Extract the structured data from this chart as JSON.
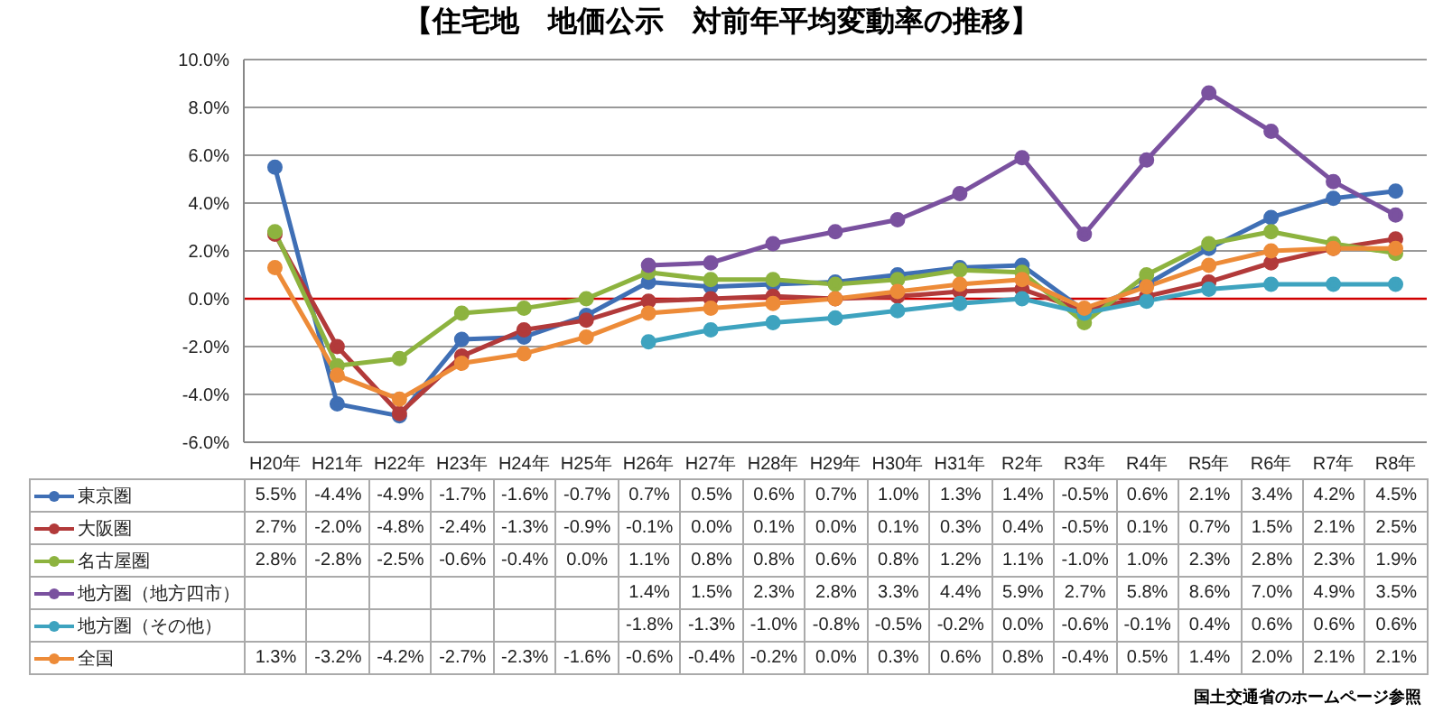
{
  "chart_data": {
    "type": "line",
    "title": "【住宅地　地価公示　対前年平均変動率の推移】",
    "categories": [
      "H20年",
      "H21年",
      "H22年",
      "H23年",
      "H24年",
      "H25年",
      "H26年",
      "H27年",
      "H28年",
      "H29年",
      "H30年",
      "H31年",
      "R2年",
      "R3年",
      "R4年",
      "R5年",
      "R6年",
      "R7年",
      "R8年"
    ],
    "series": [
      {
        "name": "東京圏",
        "color": "#3f6fb5",
        "values": [
          5.5,
          -4.4,
          -4.9,
          -1.7,
          -1.6,
          -0.7,
          0.7,
          0.5,
          0.6,
          0.7,
          1.0,
          1.3,
          1.4,
          -0.5,
          0.6,
          2.1,
          3.4,
          4.2,
          4.5
        ],
        "value_labels": [
          "5.5%",
          "-4.4%",
          "-4.9%",
          "-1.7%",
          "-1.6%",
          "-0.7%",
          "0.7%",
          "0.5%",
          "0.6%",
          "0.7%",
          "1.0%",
          "1.3%",
          "1.4%",
          "-0.5%",
          "0.6%",
          "2.1%",
          "3.4%",
          "4.2%",
          "4.5%"
        ]
      },
      {
        "name": "大阪圏",
        "color": "#b23a3a",
        "values": [
          2.7,
          -2.0,
          -4.8,
          -2.4,
          -1.3,
          -0.9,
          -0.1,
          0.0,
          0.1,
          0.0,
          0.1,
          0.3,
          0.4,
          -0.5,
          0.1,
          0.7,
          1.5,
          2.1,
          2.5
        ],
        "value_labels": [
          "2.7%",
          "-2.0%",
          "-4.8%",
          "-2.4%",
          "-1.3%",
          "-0.9%",
          "-0.1%",
          "0.0%",
          "0.1%",
          "0.0%",
          "0.1%",
          "0.3%",
          "0.4%",
          "-0.5%",
          "0.1%",
          "0.7%",
          "1.5%",
          "2.1%",
          "2.5%"
        ]
      },
      {
        "name": "名古屋圏",
        "color": "#8db33f",
        "values": [
          2.8,
          -2.8,
          -2.5,
          -0.6,
          -0.4,
          0.0,
          1.1,
          0.8,
          0.8,
          0.6,
          0.8,
          1.2,
          1.1,
          -1.0,
          1.0,
          2.3,
          2.8,
          2.3,
          1.9
        ],
        "value_labels": [
          "2.8%",
          "-2.8%",
          "-2.5%",
          "-0.6%",
          "-0.4%",
          "0.0%",
          "1.1%",
          "0.8%",
          "0.8%",
          "0.6%",
          "0.8%",
          "1.2%",
          "1.1%",
          "-1.0%",
          "1.0%",
          "2.3%",
          "2.8%",
          "2.3%",
          "1.9%"
        ]
      },
      {
        "name": "地方圏（地方四市）",
        "color": "#7a519f",
        "values": [
          null,
          null,
          null,
          null,
          null,
          null,
          1.4,
          1.5,
          2.3,
          2.8,
          3.3,
          4.4,
          5.9,
          2.7,
          5.8,
          8.6,
          7.0,
          4.9,
          3.5
        ],
        "value_labels": [
          null,
          null,
          null,
          null,
          null,
          null,
          "1.4%",
          "1.5%",
          "2.3%",
          "2.8%",
          "3.3%",
          "4.4%",
          "5.9%",
          "2.7%",
          "5.8%",
          "8.6%",
          "7.0%",
          "4.9%",
          "3.5%"
        ]
      },
      {
        "name": "地方圏（その他）",
        "color": "#3ea3bf",
        "values": [
          null,
          null,
          null,
          null,
          null,
          null,
          -1.8,
          -1.3,
          -1.0,
          -0.8,
          -0.5,
          -0.2,
          0.0,
          -0.6,
          -0.1,
          0.4,
          0.6,
          0.6,
          0.6
        ],
        "value_labels": [
          null,
          null,
          null,
          null,
          null,
          null,
          "-1.8%",
          "-1.3%",
          "-1.0%",
          "-0.8%",
          "-0.5%",
          "-0.2%",
          "0.0%",
          "-0.6%",
          "-0.1%",
          "0.4%",
          "0.6%",
          "0.6%",
          "0.6%"
        ]
      },
      {
        "name": "全国",
        "color": "#ed8b38",
        "values": [
          1.3,
          -3.2,
          -4.2,
          -2.7,
          -2.3,
          -1.6,
          -0.6,
          -0.4,
          -0.2,
          0.0,
          0.3,
          0.6,
          0.8,
          -0.4,
          0.5,
          1.4,
          2.0,
          2.1,
          2.1
        ],
        "value_labels": [
          "1.3%",
          "-3.2%",
          "-4.2%",
          "-2.7%",
          "-2.3%",
          "-1.6%",
          "-0.6%",
          "-0.4%",
          "-0.2%",
          "0.0%",
          "0.3%",
          "0.6%",
          "0.8%",
          "-0.4%",
          "0.5%",
          "1.4%",
          "2.0%",
          "2.1%",
          "2.1%"
        ]
      }
    ],
    "ylim": [
      -6,
      10
    ],
    "yticks": [
      {
        "value": -6,
        "label": "-6.0%"
      },
      {
        "value": -4,
        "label": "-4.0%"
      },
      {
        "value": -2,
        "label": "-2.0%"
      },
      {
        "value": 0,
        "label": "0.0%"
      },
      {
        "value": 2,
        "label": "2.0%"
      },
      {
        "value": 4,
        "label": "4.0%"
      },
      {
        "value": 6,
        "label": "6.0%"
      },
      {
        "value": 8,
        "label": "8.0%"
      },
      {
        "value": 10,
        "label": "10.0%"
      }
    ],
    "grid": "y",
    "legend": "bottom",
    "marker": "circle",
    "ref_lines": [
      {
        "axis": "y",
        "value": 0,
        "color": "#d00000"
      }
    ],
    "annotations": [
      "国土交通省のホームページ参照"
    ]
  }
}
